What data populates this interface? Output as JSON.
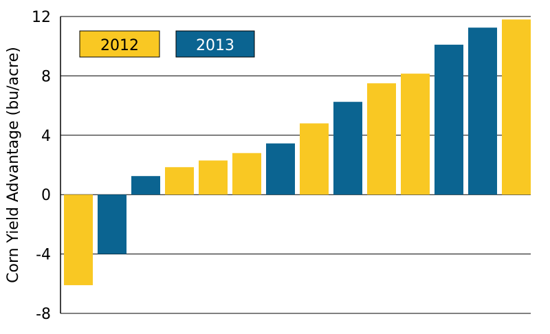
{
  "chart_data": {
    "type": "bar",
    "title": "",
    "xlabel": "",
    "ylabel": "Corn Yield Advantage (bu/acre)",
    "ylim": [
      -8,
      12
    ],
    "yticks": [
      -8,
      -4,
      0,
      4,
      8,
      12
    ],
    "ytick_labels": [
      "-8",
      "-4",
      "0",
      "4",
      "8",
      "12"
    ],
    "grid": true,
    "legend_position": "top-left",
    "legend": [
      {
        "label": "2012",
        "color": "#F9C823",
        "text_color": "#000000"
      },
      {
        "label": "2013",
        "color": "#0B6491",
        "text_color": "#ffffff"
      }
    ],
    "bars": [
      {
        "series": "2012",
        "value": -6.1
      },
      {
        "series": "2013",
        "value": -4.0
      },
      {
        "series": "2013",
        "value": 1.25
      },
      {
        "series": "2012",
        "value": 1.85
      },
      {
        "series": "2012",
        "value": 2.3
      },
      {
        "series": "2012",
        "value": 2.8
      },
      {
        "series": "2013",
        "value": 3.45
      },
      {
        "series": "2012",
        "value": 4.8
      },
      {
        "series": "2013",
        "value": 6.25
      },
      {
        "series": "2012",
        "value": 7.5
      },
      {
        "series": "2012",
        "value": 8.15
      },
      {
        "series": "2013",
        "value": 10.1
      },
      {
        "series": "2013",
        "value": 11.25
      },
      {
        "series": "2012",
        "value": 11.8
      }
    ]
  }
}
